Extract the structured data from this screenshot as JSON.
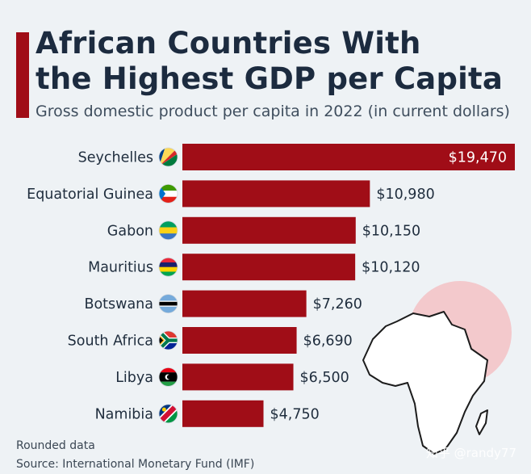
{
  "header": {
    "title_line1": "African Countries With",
    "title_line2": "the Highest GDP per Capita",
    "subtitle": "Gross domestic product per capita in 2022 (in current dollars)"
  },
  "colors": {
    "bar": "#a00d17",
    "accent": "#a00d17",
    "title": "#1c2b3f",
    "background": "#eef2f5"
  },
  "chart_data": {
    "type": "bar",
    "orientation": "horizontal",
    "title": "African Countries With the Highest GDP per Capita",
    "subtitle": "Gross domestic product per capita in 2022 (in current dollars)",
    "xlabel": "",
    "ylabel": "",
    "unit": "US dollars",
    "xlim": [
      0,
      19470
    ],
    "grid": false,
    "categories": [
      "Seychelles",
      "Equatorial Guinea",
      "Gabon",
      "Mauritius",
      "Botswana",
      "South Africa",
      "Libya",
      "Namibia"
    ],
    "values": [
      19470,
      10980,
      10150,
      10120,
      7260,
      6690,
      6500,
      4750
    ],
    "value_labels": [
      "$19,470",
      "$10,980",
      "$10,150",
      "$10,120",
      "$7,260",
      "$6,690",
      "$6,500",
      "$4,750"
    ],
    "flag_icons": [
      "seychelles-flag-icon",
      "equatorial-guinea-flag-icon",
      "gabon-flag-icon",
      "mauritius-flag-icon",
      "botswana-flag-icon",
      "south-africa-flag-icon",
      "libya-flag-icon",
      "namibia-flag-icon"
    ]
  },
  "footer": {
    "note": "Rounded data",
    "source": "Source: International Monetary Fund (IMF)"
  },
  "watermark": "知乎 @randy77"
}
